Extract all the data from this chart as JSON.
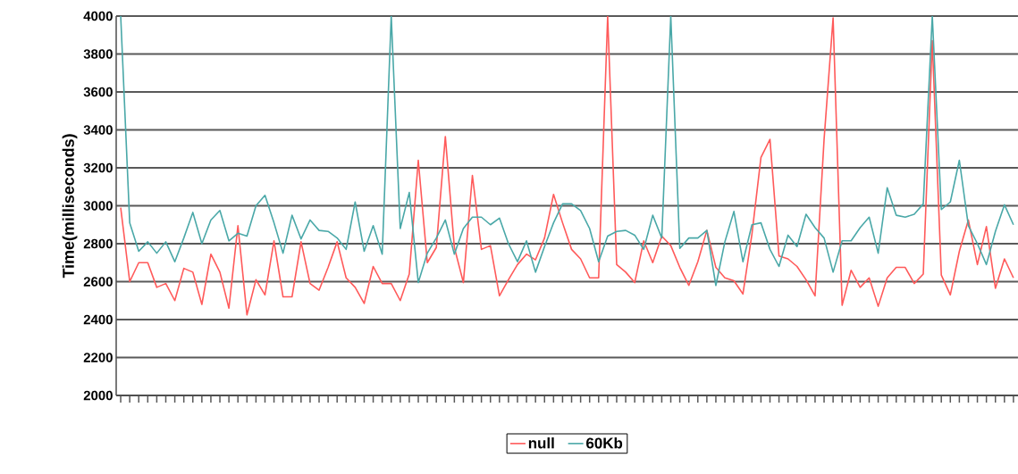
{
  "chart_data": {
    "type": "line",
    "ylabel": "Time(milliseconds)",
    "categories": [
      null,
      null,
      null,
      null,
      null,
      null,
      null,
      null,
      null,
      null,
      null,
      null,
      null,
      null,
      null,
      null,
      null,
      null,
      null,
      null,
      null,
      null,
      null,
      null,
      null,
      null,
      null,
      null,
      null,
      null,
      null,
      null,
      null,
      null,
      null,
      null,
      null,
      null,
      null,
      null,
      null,
      null,
      null,
      null,
      null,
      null,
      null,
      null,
      null,
      null,
      null,
      null,
      null,
      null,
      null,
      null,
      null,
      null,
      null,
      null,
      null,
      null,
      null,
      null,
      null,
      null,
      null,
      null,
      null,
      null,
      null,
      null,
      null,
      null,
      null,
      null,
      null,
      null,
      null,
      null,
      null,
      null,
      null,
      null,
      null,
      null,
      null,
      null,
      null,
      null,
      null,
      null,
      null,
      null,
      null,
      null,
      null,
      null,
      null,
      null
    ],
    "series": [
      {
        "name": "null",
        "color": "#ff5a5a",
        "values": [
          2990,
          2600,
          2700,
          2700,
          2570,
          2590,
          2500,
          2670,
          2650,
          2480,
          2745,
          2650,
          2460,
          2895,
          2425,
          2610,
          2530,
          2815,
          2520,
          2520,
          2810,
          2590,
          2555,
          2675,
          2810,
          2620,
          2570,
          2485,
          2680,
          2590,
          2590,
          2500,
          2640,
          3240,
          2700,
          2780,
          3365,
          2780,
          2595,
          3160,
          2770,
          2790,
          2525,
          2610,
          2690,
          2745,
          2715,
          2830,
          3060,
          2910,
          2770,
          2720,
          2620,
          2620,
          4000,
          2690,
          2650,
          2595,
          2815,
          2700,
          2840,
          2790,
          2675,
          2580,
          2705,
          2870,
          2675,
          2620,
          2605,
          2535,
          2850,
          3255,
          3350,
          2735,
          2720,
          2680,
          2610,
          2525,
          3350,
          3990,
          2475,
          2660,
          2570,
          2620,
          2470,
          2620,
          2675,
          2675,
          2590,
          2640,
          3870,
          2635,
          2530,
          2760,
          2925,
          2690,
          2890,
          2565,
          2720,
          2620
        ]
      },
      {
        "name": "60Kb",
        "color": "#4aa8a8",
        "values": [
          4000,
          2910,
          2760,
          2810,
          2750,
          2810,
          2705,
          2830,
          2965,
          2800,
          2925,
          2975,
          2815,
          2855,
          2840,
          3000,
          3055,
          2910,
          2750,
          2950,
          2825,
          2925,
          2870,
          2865,
          2830,
          2770,
          3020,
          2760,
          2895,
          2745,
          4000,
          2880,
          3070,
          2595,
          2750,
          2830,
          2925,
          2745,
          2880,
          2940,
          2940,
          2900,
          2935,
          2800,
          2705,
          2815,
          2650,
          2785,
          2910,
          3010,
          3010,
          2975,
          2880,
          2705,
          2840,
          2865,
          2870,
          2845,
          2770,
          2950,
          2830,
          4000,
          2775,
          2830,
          2830,
          2870,
          2580,
          2810,
          2970,
          2705,
          2900,
          2910,
          2770,
          2680,
          2845,
          2785,
          2955,
          2885,
          2830,
          2650,
          2815,
          2815,
          2885,
          2940,
          2750,
          3095,
          2950,
          2940,
          2955,
          3010,
          4000,
          2980,
          3020,
          3240,
          2895,
          2800,
          2690,
          2865,
          3005,
          2900
        ]
      }
    ],
    "ylim": [
      2000,
      4000
    ],
    "yticks": [
      2000,
      2200,
      2400,
      2600,
      2800,
      3000,
      3200,
      3400,
      3600,
      3800,
      4000
    ],
    "grid": "y",
    "legend": "bottom"
  }
}
